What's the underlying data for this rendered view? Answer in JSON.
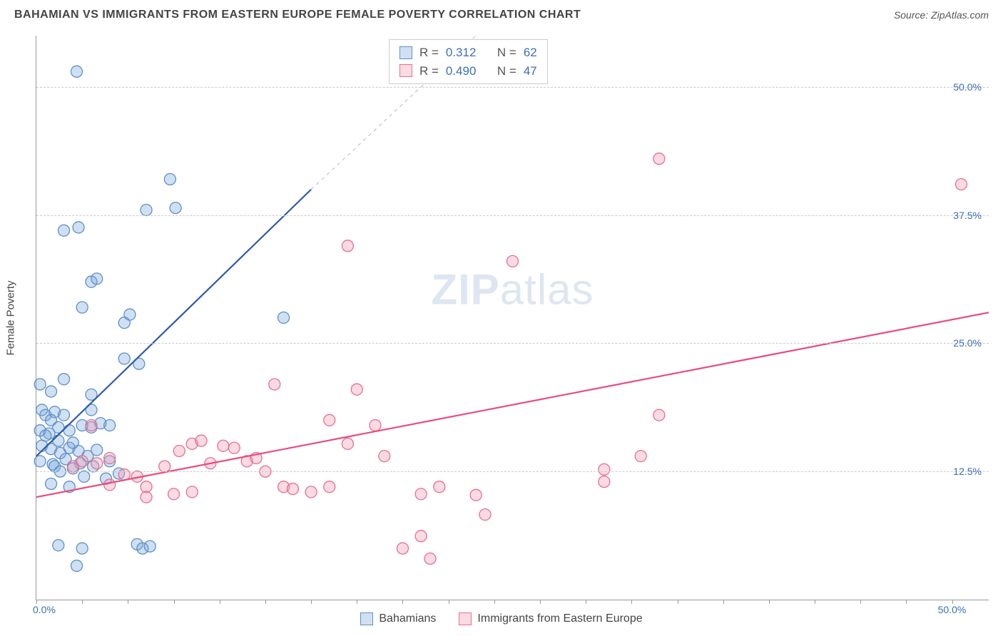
{
  "title": "BAHAMIAN VS IMMIGRANTS FROM EASTERN EUROPE FEMALE POVERTY CORRELATION CHART",
  "source_label": "Source:",
  "source_name": "ZipAtlas.com",
  "y_axis_label": "Female Poverty",
  "watermark_bold": "ZIP",
  "watermark_rest": "atlas",
  "chart": {
    "type": "scatter",
    "background_color": "#ffffff",
    "grid_color": "#cccccc",
    "grid_dash": "4,4",
    "axis_color": "#999999",
    "label_color": "#3b6fb6",
    "label_fontsize": 14,
    "xlim": [
      0,
      52
    ],
    "ylim": [
      0,
      55
    ],
    "x_ticks": [
      0,
      2.5,
      5,
      7.5,
      10,
      12.5,
      15,
      17.5,
      20,
      22.5,
      25,
      27.5,
      30,
      32.5,
      35,
      37.5,
      40,
      42.5,
      45,
      47.5,
      50
    ],
    "x_tick_labels": {
      "0": "0.0%",
      "50": "50.0%"
    },
    "y_grid": [
      12.5,
      25.0,
      37.5,
      50.0
    ],
    "y_tick_labels": [
      "12.5%",
      "25.0%",
      "37.5%",
      "50.0%"
    ],
    "marker_radius": 8,
    "marker_stroke_width": 1.3,
    "line_width": 2.2,
    "series": [
      {
        "name": "Bahamians",
        "fill": "rgba(120,165,220,0.35)",
        "stroke": "#5e8fc9",
        "line_color": "#2e5aa8",
        "R": "0.312",
        "N": "62",
        "trend": {
          "x1": 0,
          "y1": 14.0,
          "x2": 15,
          "y2": 40.0,
          "dash_x2": 24,
          "dash_y2": 55
        },
        "points": [
          [
            2.2,
            51.5
          ],
          [
            7.3,
            41.0
          ],
          [
            6.0,
            38.0
          ],
          [
            7.6,
            38.2
          ],
          [
            1.5,
            36.0
          ],
          [
            2.3,
            36.3
          ],
          [
            3.0,
            31.0
          ],
          [
            3.3,
            31.3
          ],
          [
            2.5,
            28.5
          ],
          [
            4.8,
            27.0
          ],
          [
            5.1,
            27.8
          ],
          [
            0.2,
            21.0
          ],
          [
            0.8,
            20.3
          ],
          [
            1.5,
            21.5
          ],
          [
            4.8,
            23.5
          ],
          [
            5.6,
            23.0
          ],
          [
            0.3,
            18.5
          ],
          [
            0.5,
            18.0
          ],
          [
            1.0,
            18.3
          ],
          [
            0.8,
            17.5
          ],
          [
            1.5,
            18.0
          ],
          [
            0.2,
            16.5
          ],
          [
            0.7,
            16.2
          ],
          [
            1.2,
            16.8
          ],
          [
            1.8,
            16.5
          ],
          [
            2.5,
            17.0
          ],
          [
            3.0,
            16.8
          ],
          [
            3.5,
            17.2
          ],
          [
            4.0,
            17.0
          ],
          [
            13.5,
            27.5
          ],
          [
            0.3,
            15.0
          ],
          [
            0.8,
            14.7
          ],
          [
            1.3,
            14.3
          ],
          [
            1.8,
            14.8
          ],
          [
            2.3,
            14.5
          ],
          [
            2.8,
            14.0
          ],
          [
            3.3,
            14.6
          ],
          [
            0.2,
            13.5
          ],
          [
            0.9,
            13.2
          ],
          [
            1.6,
            13.7
          ],
          [
            2.4,
            13.3
          ],
          [
            3.1,
            13.0
          ],
          [
            4.0,
            13.5
          ],
          [
            1.0,
            13.0
          ],
          [
            1.3,
            12.5
          ],
          [
            2.0,
            12.8
          ],
          [
            0.8,
            11.3
          ],
          [
            1.8,
            11.0
          ],
          [
            2.6,
            12.0
          ],
          [
            4.5,
            12.3
          ],
          [
            3.8,
            11.8
          ],
          [
            2.5,
            5.0
          ],
          [
            1.2,
            5.3
          ],
          [
            5.5,
            5.4
          ],
          [
            5.8,
            5.0
          ],
          [
            6.2,
            5.2
          ],
          [
            2.2,
            3.3
          ],
          [
            3.0,
            18.5
          ],
          [
            3.0,
            20.0
          ],
          [
            0.5,
            16.0
          ],
          [
            1.2,
            15.5
          ],
          [
            2.0,
            15.3
          ]
        ]
      },
      {
        "name": "Immigrants from Eastern Europe",
        "fill": "rgba(240,150,175,0.35)",
        "stroke": "#e5708f",
        "line_color": "#e94b7a",
        "R": "0.490",
        "N": "47",
        "trend": {
          "x1": 0,
          "y1": 10.0,
          "x2": 52,
          "y2": 28.0
        },
        "points": [
          [
            17.0,
            34.5
          ],
          [
            26.0,
            33.0
          ],
          [
            34.0,
            43.0
          ],
          [
            50.5,
            40.5
          ],
          [
            13.0,
            21.0
          ],
          [
            17.5,
            20.5
          ],
          [
            18.5,
            17.0
          ],
          [
            16.0,
            17.5
          ],
          [
            34.0,
            18.0
          ],
          [
            33.0,
            14.0
          ],
          [
            31.0,
            12.7
          ],
          [
            31.0,
            11.5
          ],
          [
            19.0,
            14.0
          ],
          [
            2.0,
            13.0
          ],
          [
            2.5,
            13.5
          ],
          [
            3.3,
            13.3
          ],
          [
            4.0,
            13.8
          ],
          [
            4.8,
            12.2
          ],
          [
            5.5,
            12.0
          ],
          [
            6.0,
            11.0
          ],
          [
            7.0,
            13.0
          ],
          [
            7.8,
            14.5
          ],
          [
            8.5,
            15.2
          ],
          [
            9.0,
            15.5
          ],
          [
            9.5,
            13.3
          ],
          [
            10.2,
            15.0
          ],
          [
            10.8,
            14.8
          ],
          [
            11.5,
            13.5
          ],
          [
            12.0,
            13.8
          ],
          [
            12.5,
            12.5
          ],
          [
            6.0,
            10.0
          ],
          [
            7.5,
            10.3
          ],
          [
            8.5,
            10.5
          ],
          [
            13.5,
            11.0
          ],
          [
            14.0,
            10.8
          ],
          [
            15.0,
            10.5
          ],
          [
            16.0,
            11.0
          ],
          [
            17.0,
            15.2
          ],
          [
            21.0,
            10.3
          ],
          [
            22.0,
            11.0
          ],
          [
            24.0,
            10.2
          ],
          [
            24.5,
            8.3
          ],
          [
            21.0,
            6.2
          ],
          [
            20.0,
            5.0
          ],
          [
            21.5,
            4.0
          ],
          [
            3.0,
            17.0
          ],
          [
            4.0,
            11.2
          ]
        ]
      }
    ]
  },
  "stats_labels": {
    "R": "R =",
    "N": "N ="
  }
}
